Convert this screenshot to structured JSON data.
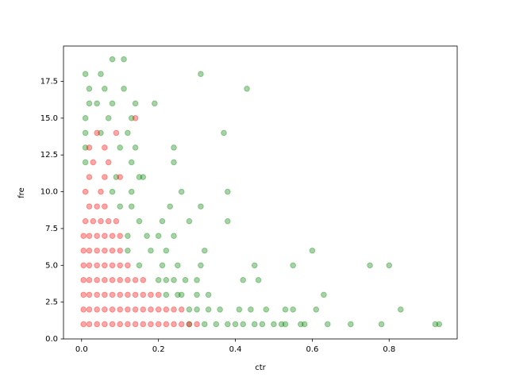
{
  "chart_data": {
    "type": "scatter",
    "xlabel": "ctr",
    "ylabel": "fre",
    "xlim": [
      -0.047,
      0.977
    ],
    "ylim": [
      0,
      19.9
    ],
    "xticks": [
      {
        "value": 0,
        "label": "0.0"
      },
      {
        "value": 0.2,
        "label": "0.2"
      },
      {
        "value": 0.4,
        "label": "0.4"
      },
      {
        "value": 0.6,
        "label": "0.6"
      },
      {
        "value": 0.8,
        "label": "0.8"
      }
    ],
    "yticks": [
      {
        "value": 0,
        "label": "0.0"
      },
      2.5,
      {
        "value": 5,
        "label": "5.0"
      },
      7.5,
      {
        "value": 10,
        "label": "10.0"
      },
      12.5,
      {
        "value": 15,
        "label": "15.0"
      },
      17.5
    ],
    "alpha": 0.35,
    "series": [
      {
        "color": "green",
        "x": [
          0.28,
          0.32,
          0.35,
          0.38,
          0.4,
          0.42,
          0.45,
          0.47,
          0.5,
          0.52,
          0.53,
          0.57,
          0.58,
          0.64,
          0.7,
          0.78,
          0.92,
          0.93,
          0.28,
          0.3,
          0.33,
          0.36,
          0.41,
          0.44,
          0.48,
          0.53,
          0.55,
          0.61,
          0.83,
          0.22,
          0.25,
          0.26,
          0.3,
          0.33,
          0.63,
          0.2,
          0.22,
          0.24,
          0.27,
          0.3,
          0.42,
          0.46,
          0.15,
          0.21,
          0.25,
          0.31,
          0.45,
          0.55,
          0.75,
          0.8,
          0.12,
          0.18,
          0.22,
          0.32,
          0.6,
          0.12,
          0.17,
          0.2,
          0.24,
          0.15,
          0.21,
          0.28,
          0.38,
          0.1,
          0.13,
          0.23,
          0.31,
          0.08,
          0.13,
          0.26,
          0.38,
          0.09,
          0.15,
          0.16,
          0.01,
          0.13,
          0.24,
          0.01,
          0.1,
          0.14,
          0.24,
          0.01,
          0.05,
          0.12,
          0.37,
          0.01,
          0.07,
          0.13,
          0.02,
          0.04,
          0.08,
          0.14,
          0.19,
          0.02,
          0.06,
          0.11,
          0.43,
          0.01,
          0.05,
          0.31,
          0.08,
          0.11
        ],
        "values": [
          1,
          1,
          1,
          1,
          1,
          1,
          1,
          1,
          1,
          1,
          1,
          1,
          1,
          1,
          1,
          1,
          1,
          1,
          2,
          2,
          2,
          2,
          2,
          2,
          2,
          2,
          2,
          2,
          2,
          3,
          3,
          3,
          3,
          3,
          3,
          4,
          4,
          4,
          4,
          4,
          4,
          4,
          5,
          5,
          5,
          5,
          5,
          5,
          5,
          5,
          6,
          6,
          6,
          6,
          6,
          7,
          7,
          7,
          7,
          8,
          8,
          8,
          8,
          9,
          9,
          9,
          9,
          10,
          10,
          10,
          10,
          11,
          11,
          11,
          12,
          12,
          12,
          13,
          13,
          13,
          13,
          14,
          14,
          14,
          14,
          15,
          15,
          15,
          16,
          16,
          16,
          16,
          16,
          17,
          17,
          17,
          17,
          18,
          18,
          18,
          19,
          19
        ]
      },
      {
        "color": "red",
        "x": [
          0.005,
          0.02,
          0.04,
          0.06,
          0.08,
          0.1,
          0.12,
          0.14,
          0.16,
          0.18,
          0.2,
          0.22,
          0.24,
          0.26,
          0.28,
          0.3,
          0.005,
          0.02,
          0.04,
          0.06,
          0.08,
          0.1,
          0.12,
          0.14,
          0.16,
          0.18,
          0.2,
          0.22,
          0.24,
          0.26,
          0.005,
          0.02,
          0.04,
          0.06,
          0.08,
          0.1,
          0.12,
          0.14,
          0.16,
          0.18,
          0.2,
          0.005,
          0.02,
          0.04,
          0.06,
          0.08,
          0.1,
          0.12,
          0.14,
          0.16,
          0.005,
          0.02,
          0.04,
          0.06,
          0.08,
          0.1,
          0.12,
          0.005,
          0.02,
          0.04,
          0.06,
          0.08,
          0.1,
          0.005,
          0.02,
          0.04,
          0.06,
          0.08,
          0.1,
          0.01,
          0.03,
          0.05,
          0.07,
          0.09,
          0.02,
          0.04,
          0.06,
          0.01,
          0.05,
          0.02,
          0.06,
          0.1,
          0.03,
          0.07,
          0.02,
          0.06,
          0.04,
          0.09,
          0.14
        ],
        "values": [
          1,
          1,
          1,
          1,
          1,
          1,
          1,
          1,
          1,
          1,
          1,
          1,
          1,
          1,
          1,
          1,
          2,
          2,
          2,
          2,
          2,
          2,
          2,
          2,
          2,
          2,
          2,
          2,
          2,
          2,
          3,
          3,
          3,
          3,
          3,
          3,
          3,
          3,
          3,
          3,
          3,
          4,
          4,
          4,
          4,
          4,
          4,
          4,
          4,
          4,
          5,
          5,
          5,
          5,
          5,
          5,
          5,
          6,
          6,
          6,
          6,
          6,
          6,
          7,
          7,
          7,
          7,
          7,
          7,
          8,
          8,
          8,
          8,
          8,
          9,
          9,
          9,
          10,
          10,
          11,
          11,
          11,
          12,
          12,
          13,
          13,
          14,
          14,
          15
        ]
      }
    ]
  }
}
